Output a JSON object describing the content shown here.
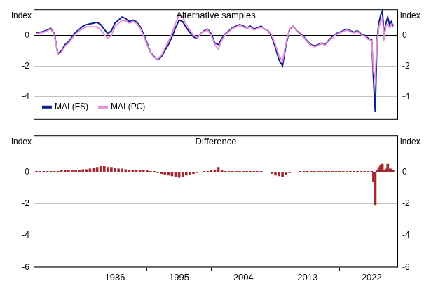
{
  "chart_data": [
    {
      "type": "line",
      "title": "Alternative samples",
      "ylabel": "index",
      "x": [
        1975.0,
        1975.5,
        1976.0,
        1976.5,
        1977.0,
        1977.5,
        1978.0,
        1978.5,
        1979.0,
        1979.5,
        1980.0,
        1980.5,
        1981.0,
        1981.5,
        1982.0,
        1982.5,
        1983.0,
        1983.5,
        1984.0,
        1984.5,
        1985.0,
        1985.5,
        1986.0,
        1986.5,
        1987.0,
        1987.5,
        1988.0,
        1988.5,
        1989.0,
        1989.5,
        1990.0,
        1990.5,
        1991.0,
        1991.5,
        1992.0,
        1992.5,
        1993.0,
        1993.5,
        1994.0,
        1994.5,
        1995.0,
        1995.5,
        1996.0,
        1996.5,
        1997.0,
        1997.5,
        1998.0,
        1998.5,
        1999.0,
        1999.5,
        2000.0,
        2000.5,
        2001.0,
        2001.5,
        2002.0,
        2002.5,
        2003.0,
        2003.5,
        2004.0,
        2004.5,
        2005.0,
        2005.5,
        2006.0,
        2006.5,
        2007.0,
        2007.5,
        2008.0,
        2008.5,
        2009.0,
        2009.5,
        2010.0,
        2010.5,
        2011.0,
        2011.5,
        2012.0,
        2012.5,
        2013.0,
        2013.5,
        2014.0,
        2014.5,
        2015.0,
        2015.5,
        2016.0,
        2016.5,
        2017.0,
        2017.5,
        2018.0,
        2018.5,
        2019.0,
        2019.5,
        2020.0,
        2020.5,
        2021.0,
        2021.5,
        2022.0,
        2022.25,
        2022.5,
        2022.75,
        2023.0,
        2023.25,
        2023.5,
        2023.75,
        2024.0,
        2024.25,
        2024.5,
        2024.75,
        2025.0
      ],
      "series": [
        {
          "name": "MAI (FS)",
          "color": "#0d1f8c",
          "values": [
            0.15,
            0.2,
            0.25,
            0.35,
            0.45,
            0.1,
            -1.2,
            -1.0,
            -0.6,
            -0.4,
            -0.1,
            0.2,
            0.4,
            0.6,
            0.7,
            0.75,
            0.8,
            0.85,
            0.7,
            0.4,
            0.1,
            0.3,
            0.8,
            1.0,
            1.2,
            1.1,
            0.9,
            1.0,
            0.9,
            0.6,
            0.1,
            -0.5,
            -1.1,
            -1.4,
            -1.6,
            -1.4,
            -1.0,
            -0.6,
            -0.1,
            0.5,
            1.0,
            0.9,
            0.5,
            0.2,
            -0.1,
            -0.2,
            0.1,
            0.3,
            0.4,
            0.1,
            -0.5,
            -0.6,
            -0.2,
            0.1,
            0.3,
            0.5,
            0.6,
            0.7,
            0.6,
            0.5,
            0.6,
            0.4,
            0.5,
            0.6,
            0.4,
            0.3,
            -0.1,
            -0.8,
            -1.6,
            -2.0,
            -0.6,
            0.4,
            0.6,
            0.3,
            0.1,
            -0.1,
            -0.4,
            -0.6,
            -0.7,
            -0.6,
            -0.5,
            -0.6,
            -0.3,
            -0.1,
            0.1,
            0.2,
            0.3,
            0.4,
            0.3,
            0.2,
            0.3,
            0.1,
            0.0,
            -0.2,
            -0.3,
            -2.9,
            -5.0,
            -0.3,
            0.8,
            1.3,
            1.6,
            0.0,
            0.8,
            1.2,
            0.7,
            0.9,
            0.6
          ]
        },
        {
          "name": "MAI (PC)",
          "color": "#e68fd6",
          "values": [
            0.1,
            0.15,
            0.2,
            0.3,
            0.4,
            0.05,
            -1.25,
            -1.1,
            -0.7,
            -0.5,
            -0.2,
            0.1,
            0.3,
            0.45,
            0.55,
            0.55,
            0.55,
            0.55,
            0.35,
            0.05,
            -0.2,
            0.0,
            0.55,
            0.8,
            1.0,
            0.95,
            0.8,
            0.9,
            0.8,
            0.5,
            0.0,
            -0.6,
            -1.15,
            -1.45,
            -1.55,
            -1.3,
            -0.85,
            -0.4,
            0.15,
            0.8,
            1.35,
            1.2,
            0.7,
            0.35,
            0.0,
            -0.15,
            0.1,
            0.25,
            0.35,
            0.0,
            -0.6,
            -0.9,
            -0.3,
            0.05,
            0.25,
            0.45,
            0.55,
            0.65,
            0.55,
            0.45,
            0.55,
            0.35,
            0.45,
            0.55,
            0.4,
            0.3,
            0.0,
            -0.6,
            -1.35,
            -1.7,
            -0.45,
            0.45,
            0.6,
            0.3,
            0.05,
            -0.15,
            -0.45,
            -0.65,
            -0.75,
            -0.65,
            -0.55,
            -0.65,
            -0.35,
            -0.15,
            0.05,
            0.15,
            0.25,
            0.35,
            0.25,
            0.15,
            0.25,
            0.05,
            -0.05,
            -0.25,
            -0.35,
            -2.3,
            -2.9,
            -0.4,
            0.5,
            0.9,
            1.1,
            -0.1,
            0.6,
            0.7,
            0.5,
            0.7,
            0.5
          ]
        }
      ],
      "xlim": [
        1974.6,
        2025.7
      ],
      "xticks": [
        1986,
        1995,
        2004,
        2013,
        2022
      ],
      "ylim": [
        -5.5,
        1.7
      ],
      "yticks": [
        -4,
        -2,
        0
      ],
      "grid": true,
      "legend": "lower left",
      "tick_labels": "y"
    },
    {
      "type": "bar",
      "title": "Difference",
      "ylabel": "index",
      "x": [
        1975.0,
        1975.5,
        1976.0,
        1976.5,
        1977.0,
        1977.5,
        1978.0,
        1978.5,
        1979.0,
        1979.5,
        1980.0,
        1980.5,
        1981.0,
        1981.5,
        1982.0,
        1982.5,
        1983.0,
        1983.5,
        1984.0,
        1984.5,
        1985.0,
        1985.5,
        1986.0,
        1986.5,
        1987.0,
        1987.5,
        1988.0,
        1988.5,
        1989.0,
        1989.5,
        1990.0,
        1990.5,
        1991.0,
        1991.5,
        1992.0,
        1992.5,
        1993.0,
        1993.5,
        1994.0,
        1994.5,
        1995.0,
        1995.5,
        1996.0,
        1996.5,
        1997.0,
        1997.5,
        1998.0,
        1998.5,
        1999.0,
        1999.5,
        2000.0,
        2000.5,
        2001.0,
        2001.5,
        2002.0,
        2002.5,
        2003.0,
        2003.5,
        2004.0,
        2004.5,
        2005.0,
        2005.5,
        2006.0,
        2006.5,
        2007.0,
        2007.5,
        2008.0,
        2008.5,
        2009.0,
        2009.5,
        2010.0,
        2010.5,
        2011.0,
        2011.5,
        2012.0,
        2012.5,
        2013.0,
        2013.5,
        2014.0,
        2014.5,
        2015.0,
        2015.5,
        2016.0,
        2016.5,
        2017.0,
        2017.5,
        2018.0,
        2018.5,
        2019.0,
        2019.5,
        2020.0,
        2020.5,
        2021.0,
        2021.5,
        2022.0,
        2022.25,
        2022.5,
        2022.75,
        2023.0,
        2023.25,
        2023.5,
        2023.75,
        2024.0,
        2024.25,
        2024.5,
        2024.75,
        2025.0
      ],
      "values": [
        0.05,
        0.05,
        0.05,
        0.05,
        0.05,
        0.05,
        0.05,
        0.1,
        0.1,
        0.1,
        0.1,
        0.1,
        0.1,
        0.15,
        0.15,
        0.2,
        0.25,
        0.3,
        0.35,
        0.35,
        0.3,
        0.3,
        0.25,
        0.2,
        0.2,
        0.15,
        0.1,
        0.1,
        0.1,
        0.1,
        0.1,
        0.1,
        0.05,
        0.05,
        -0.05,
        -0.1,
        -0.15,
        -0.2,
        -0.25,
        -0.3,
        -0.35,
        -0.3,
        -0.2,
        -0.15,
        -0.1,
        -0.05,
        0.0,
        0.05,
        0.05,
        0.1,
        0.1,
        0.3,
        0.1,
        0.05,
        0.05,
        0.05,
        0.05,
        0.05,
        0.05,
        0.05,
        0.05,
        0.05,
        0.05,
        0.05,
        0.0,
        0.0,
        -0.1,
        -0.2,
        -0.25,
        -0.3,
        -0.15,
        -0.05,
        0.0,
        0.0,
        0.05,
        0.05,
        0.05,
        0.05,
        0.05,
        0.05,
        0.05,
        0.05,
        0.05,
        0.05,
        0.05,
        0.05,
        0.05,
        0.05,
        0.05,
        0.05,
        0.05,
        0.05,
        0.05,
        0.05,
        0.05,
        -0.6,
        -2.1,
        0.1,
        0.3,
        0.4,
        0.5,
        0.1,
        0.2,
        0.5,
        0.2,
        0.2,
        0.1
      ],
      "color": "#a3282f",
      "xlim": [
        1974.6,
        2025.7
      ],
      "xticks": [
        1986,
        1995,
        2004,
        2013,
        2022
      ],
      "ylim": [
        -6,
        2.3
      ],
      "yticks": [
        -6,
        -4,
        -2,
        0
      ],
      "grid": true
    }
  ]
}
